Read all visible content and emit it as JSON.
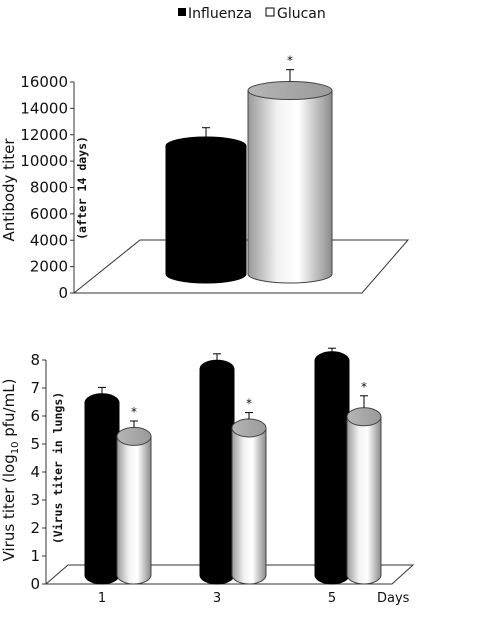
{
  "legend": {
    "items": [
      {
        "label": "Influenza",
        "color": "#000000"
      },
      {
        "label": "Glucan",
        "color": "#ffffff"
      }
    ]
  },
  "chart_data": [
    {
      "type": "bar",
      "categories": [
        ""
      ],
      "series": [
        {
          "name": "Influenza",
          "values": [
            11000
          ],
          "errors": [
            700
          ]
        },
        {
          "name": "Glucan",
          "values": [
            15200
          ],
          "errors": [
            900
          ],
          "significant": [
            true
          ]
        }
      ],
      "ylabel": "Antibody titer",
      "annotation": "(after 14 days)",
      "ylim": [
        0,
        16000
      ],
      "yticks": [
        "0",
        "2000",
        "4000",
        "6000",
        "8000",
        "10000",
        "12000",
        "14000",
        "16000"
      ],
      "significance_marker": "*",
      "style": "3d-cylinder"
    },
    {
      "type": "bar",
      "categories": [
        "1",
        "3",
        "5"
      ],
      "xlabel": "Days",
      "series": [
        {
          "name": "Influenza",
          "values": [
            6.4,
            7.6,
            7.9
          ],
          "errors": [
            0.3,
            0.3,
            0.2
          ]
        },
        {
          "name": "Glucan",
          "values": [
            5.2,
            5.5,
            5.9
          ],
          "errors": [
            0.3,
            0.3,
            0.5
          ],
          "significant": [
            true,
            true,
            true
          ]
        }
      ],
      "ylabel": "Virus titer (log10 pfu/mL)",
      "ylabel_parts": {
        "pre": "Virus titer (log",
        "sub": "10",
        "post": " pfu/mL)"
      },
      "annotation": "(Virus titer in lungs)",
      "ylim": [
        0,
        8
      ],
      "yticks": [
        "0",
        "1",
        "2",
        "3",
        "4",
        "5",
        "6",
        "7",
        "8"
      ],
      "significance_marker": "*",
      "style": "3d-cylinder"
    }
  ]
}
